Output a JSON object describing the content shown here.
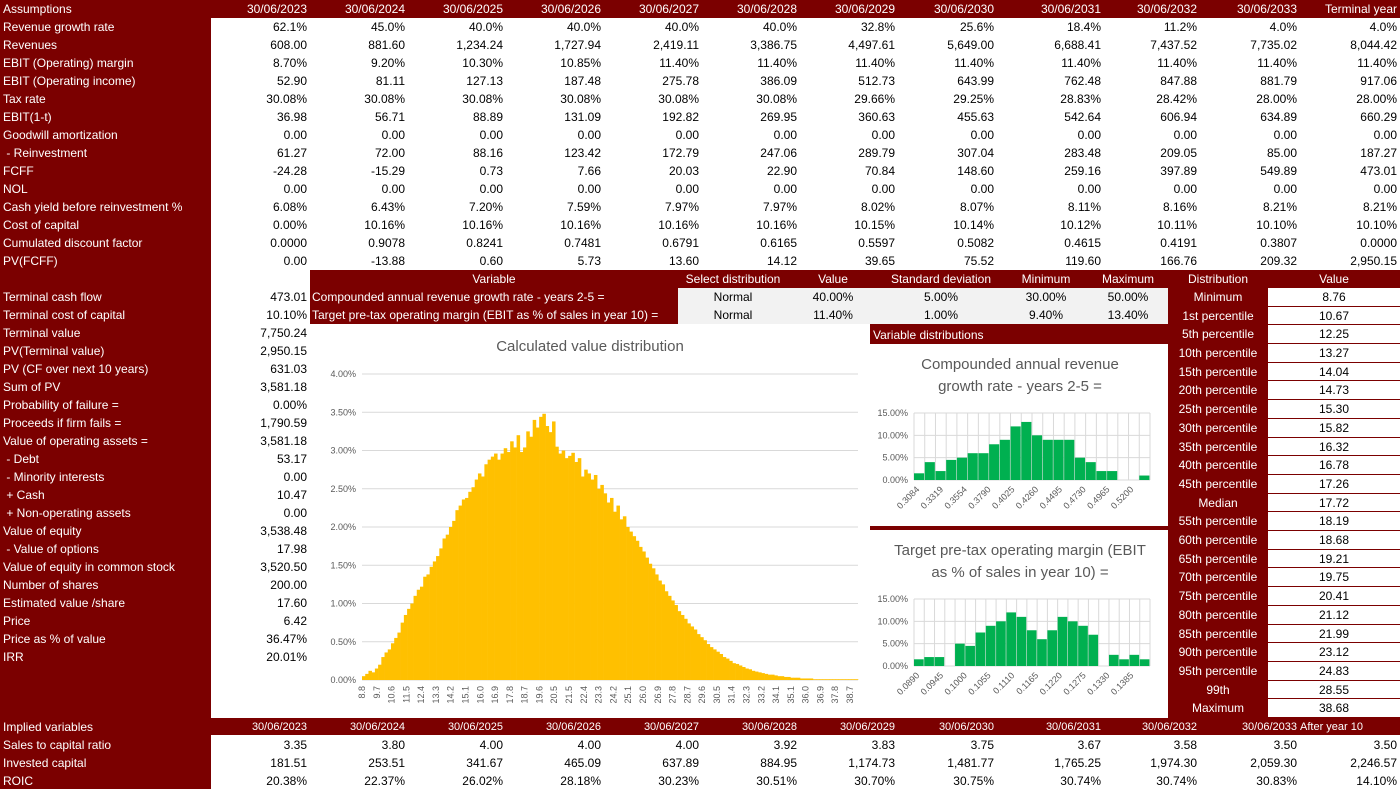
{
  "colors": {
    "maroon": "#7b0000",
    "gold": "#ffc000",
    "green": "#00b050",
    "grid_gray": "#d9d9d9"
  },
  "top_table": {
    "header_label": "Assumptions",
    "columns": [
      "30/06/2023",
      "30/06/2024",
      "30/06/2025",
      "30/06/2026",
      "30/06/2027",
      "30/06/2028",
      "30/06/2029",
      "30/06/2030",
      "30/06/2031",
      "30/06/2032",
      "30/06/2033",
      "Terminal year"
    ],
    "rows": [
      {
        "label": "Revenue growth rate",
        "values": [
          "62.1%",
          "45.0%",
          "40.0%",
          "40.0%",
          "40.0%",
          "40.0%",
          "32.8%",
          "25.6%",
          "18.4%",
          "11.2%",
          "4.0%",
          "4.0%"
        ]
      },
      {
        "label": "Revenues",
        "values": [
          "608.00",
          "881.60",
          "1,234.24",
          "1,727.94",
          "2,419.11",
          "3,386.75",
          "4,497.61",
          "5,649.00",
          "6,688.41",
          "7,437.52",
          "7,735.02",
          "8,044.42"
        ]
      },
      {
        "label": "EBIT (Operating) margin",
        "values": [
          "8.70%",
          "9.20%",
          "10.30%",
          "10.85%",
          "11.40%",
          "11.40%",
          "11.40%",
          "11.40%",
          "11.40%",
          "11.40%",
          "11.40%",
          "11.40%"
        ]
      },
      {
        "label": "EBIT (Operating income)",
        "values": [
          "52.90",
          "81.11",
          "127.13",
          "187.48",
          "275.78",
          "386.09",
          "512.73",
          "643.99",
          "762.48",
          "847.88",
          "881.79",
          "917.06"
        ]
      },
      {
        "label": "Tax rate",
        "values": [
          "30.08%",
          "30.08%",
          "30.08%",
          "30.08%",
          "30.08%",
          "30.08%",
          "29.66%",
          "29.25%",
          "28.83%",
          "28.42%",
          "28.00%",
          "28.00%"
        ]
      },
      {
        "label": "EBIT(1-t)",
        "values": [
          "36.98",
          "56.71",
          "88.89",
          "131.09",
          "192.82",
          "269.95",
          "360.63",
          "455.63",
          "542.64",
          "606.94",
          "634.89",
          "660.29"
        ]
      },
      {
        "label": "Goodwill amortization",
        "values": [
          "0.00",
          "0.00",
          "0.00",
          "0.00",
          "0.00",
          "0.00",
          "0.00",
          "0.00",
          "0.00",
          "0.00",
          "0.00",
          "0.00"
        ]
      },
      {
        "label": " - Reinvestment",
        "values": [
          "61.27",
          "72.00",
          "88.16",
          "123.42",
          "172.79",
          "247.06",
          "289.79",
          "307.04",
          "283.48",
          "209.05",
          "85.00",
          "187.27"
        ]
      },
      {
        "label": "FCFF",
        "values": [
          "-24.28",
          "-15.29",
          "0.73",
          "7.66",
          "20.03",
          "22.90",
          "70.84",
          "148.60",
          "259.16",
          "397.89",
          "549.89",
          "473.01"
        ]
      },
      {
        "label": "NOL",
        "values": [
          "0.00",
          "0.00",
          "0.00",
          "0.00",
          "0.00",
          "0.00",
          "0.00",
          "0.00",
          "0.00",
          "0.00",
          "0.00",
          "0.00"
        ]
      },
      {
        "label": "Cash yield before reinvestment %",
        "values": [
          "6.08%",
          "6.43%",
          "7.20%",
          "7.59%",
          "7.97%",
          "7.97%",
          "8.02%",
          "8.07%",
          "8.11%",
          "8.16%",
          "8.21%",
          "8.21%"
        ]
      },
      {
        "label": "Cost of capital",
        "values": [
          "0.00%",
          "10.16%",
          "10.16%",
          "10.16%",
          "10.16%",
          "10.16%",
          "10.15%",
          "10.14%",
          "10.12%",
          "10.11%",
          "10.10%",
          "10.10%"
        ]
      },
      {
        "label": "Cumulated discount factor",
        "values": [
          "0.0000",
          "0.9078",
          "0.8241",
          "0.7481",
          "0.6791",
          "0.6165",
          "0.5597",
          "0.5082",
          "0.4615",
          "0.4191",
          "0.3807",
          "0.0000"
        ]
      },
      {
        "label": "PV(FCFF)",
        "values": [
          "0.00",
          "-13.88",
          "0.60",
          "5.73",
          "13.60",
          "14.12",
          "39.65",
          "75.52",
          "119.60",
          "166.76",
          "209.32",
          "2,950.15"
        ]
      }
    ]
  },
  "valuation": [
    {
      "label": "Terminal cash flow",
      "value": "473.01"
    },
    {
      "label": "Terminal cost of capital",
      "value": "10.10%"
    },
    {
      "label": "Terminal value",
      "value": "7,750.24"
    },
    {
      "label": "PV(Terminal value)",
      "value": "2,950.15"
    },
    {
      "label": "PV (CF over next 10 years)",
      "value": "631.03"
    },
    {
      "label": "Sum of PV",
      "value": "3,581.18"
    },
    {
      "label": "Probability of failure =",
      "value": "0.00%"
    },
    {
      "label": "Proceeds if firm fails =",
      "value": "1,790.59"
    },
    {
      "label": "Value of operating assets =",
      "value": "3,581.18"
    },
    {
      "label": " - Debt",
      "value": "53.17"
    },
    {
      "label": " - Minority interests",
      "value": "0.00"
    },
    {
      "label": " + Cash",
      "value": "10.47"
    },
    {
      "label": " + Non-operating assets",
      "value": "0.00"
    },
    {
      "label": "Value of equity",
      "value": "3,538.48"
    },
    {
      "label": " - Value of options",
      "value": "17.98"
    },
    {
      "label": "Value of equity in common stock",
      "value": "3,520.50"
    },
    {
      "label": "Number of shares",
      "value": "200.00"
    },
    {
      "label": "Estimated value /share",
      "value": "17.60"
    },
    {
      "label": "Price",
      "value": "6.42"
    },
    {
      "label": "Price as % of value",
      "value": "36.47%"
    },
    {
      "label": "IRR",
      "value": "20.01%"
    }
  ],
  "variables_table": {
    "headers": [
      "Variable",
      "Select distribution",
      "Value",
      "Standard deviation",
      "Minimum",
      "Maximum"
    ],
    "rows": [
      {
        "variable": "Compounded annual revenue growth rate - years 2-5 =",
        "distribution": "Normal",
        "value": "40.00%",
        "std": "5.00%",
        "min": "30.00%",
        "max": "50.00%"
      },
      {
        "variable": "Target pre-tax operating margin (EBIT as % of sales in year 10) =",
        "distribution": "Normal",
        "value": "11.40%",
        "std": "1.00%",
        "min": "9.40%",
        "max": "13.40%"
      }
    ]
  },
  "variable_distributions_label": "Variable distributions",
  "distribution_table": {
    "headers": [
      "Distribution",
      "Value"
    ],
    "rows": [
      {
        "label": "Minimum",
        "value": "8.76"
      },
      {
        "label": "1st percentile",
        "value": "10.67"
      },
      {
        "label": "5th percentile",
        "value": "12.25"
      },
      {
        "label": "10th percentile",
        "value": "13.27"
      },
      {
        "label": "15th percentile",
        "value": "14.04"
      },
      {
        "label": "20th percentile",
        "value": "14.73"
      },
      {
        "label": "25th percentile",
        "value": "15.30"
      },
      {
        "label": "30th percentile",
        "value": "15.82"
      },
      {
        "label": "35th percentile",
        "value": "16.32"
      },
      {
        "label": "40th percentile",
        "value": "16.78"
      },
      {
        "label": "45th percentile",
        "value": "17.26"
      },
      {
        "label": "Median",
        "value": "17.72"
      },
      {
        "label": "55th percentile",
        "value": "18.19"
      },
      {
        "label": "60th percentile",
        "value": "18.68"
      },
      {
        "label": "65th percentile",
        "value": "19.21"
      },
      {
        "label": "70th percentile",
        "value": "19.75"
      },
      {
        "label": "75th percentile",
        "value": "20.41"
      },
      {
        "label": "80th percentile",
        "value": "21.12"
      },
      {
        "label": "85th percentile",
        "value": "21.99"
      },
      {
        "label": "90th percentile",
        "value": "23.12"
      },
      {
        "label": "95th percentile",
        "value": "24.83"
      },
      {
        "label": "99th",
        "value": "28.55"
      },
      {
        "label": "Maximum",
        "value": "38.68"
      }
    ]
  },
  "bottom_table": {
    "header_label": "Implied variables",
    "columns": [
      "30/06/2023",
      "30/06/2024",
      "30/06/2025",
      "30/06/2026",
      "30/06/2027",
      "30/06/2028",
      "30/06/2029",
      "30/06/2030",
      "30/06/2031",
      "30/06/2032",
      "30/06/2033",
      "After year 10"
    ],
    "rows": [
      {
        "label": "Sales to capital ratio",
        "values": [
          "3.35",
          "3.80",
          "4.00",
          "4.00",
          "4.00",
          "3.92",
          "3.83",
          "3.75",
          "3.67",
          "3.58",
          "3.50",
          "3.50"
        ]
      },
      {
        "label": "Invested capital",
        "values": [
          "181.51",
          "253.51",
          "341.67",
          "465.09",
          "637.89",
          "884.95",
          "1,174.73",
          "1,481.77",
          "1,765.25",
          "1,974.30",
          "2,059.30",
          "2,246.57"
        ]
      },
      {
        "label": "ROIC",
        "values": [
          "20.38%",
          "22.37%",
          "26.02%",
          "28.18%",
          "30.23%",
          "30.51%",
          "30.70%",
          "30.75%",
          "30.74%",
          "30.74%",
          "30.83%",
          "14.10%"
        ]
      }
    ]
  },
  "chart_data": [
    {
      "type": "bar",
      "title": "Calculated value distribution",
      "x_tick_labels": [
        "8.8",
        "9.7",
        "10.6",
        "11.5",
        "12.4",
        "13.3",
        "14.2",
        "15.1",
        "16.0",
        "16.9",
        "17.8",
        "18.7",
        "19.6",
        "20.5",
        "21.5",
        "22.4",
        "23.3",
        "24.2",
        "25.1",
        "26.0",
        "26.9",
        "27.8",
        "28.7",
        "29.6",
        "30.5",
        "31.4",
        "32.3",
        "33.2",
        "34.1",
        "35.1",
        "36.0",
        "36.9",
        "37.8",
        "38.7"
      ],
      "y_tick_labels": [
        "0.00%",
        "0.50%",
        "1.00%",
        "1.50%",
        "2.00%",
        "2.50%",
        "3.00%",
        "3.50%",
        "4.00%"
      ],
      "ylim": [
        0,
        0.04
      ],
      "values": [
        0.0005,
        0.0008,
        0.0012,
        0.001,
        0.0015,
        0.002,
        0.003,
        0.0036,
        0.004,
        0.0048,
        0.0055,
        0.0062,
        0.0075,
        0.0085,
        0.0093,
        0.01,
        0.011,
        0.0118,
        0.0122,
        0.0135,
        0.0138,
        0.0148,
        0.0155,
        0.0162,
        0.0172,
        0.0185,
        0.019,
        0.02,
        0.0208,
        0.0222,
        0.0228,
        0.0236,
        0.0238,
        0.0246,
        0.0252,
        0.0262,
        0.027,
        0.0266,
        0.0282,
        0.0288,
        0.0292,
        0.0296,
        0.0288,
        0.0296,
        0.0303,
        0.0298,
        0.0312,
        0.0304,
        0.032,
        0.0298,
        0.0304,
        0.0325,
        0.0318,
        0.034,
        0.033,
        0.0344,
        0.0348,
        0.0332,
        0.0324,
        0.0338,
        0.0305,
        0.0296,
        0.03,
        0.029,
        0.0293,
        0.0297,
        0.0285,
        0.029,
        0.0266,
        0.0275,
        0.027,
        0.0262,
        0.0268,
        0.025,
        0.0255,
        0.0244,
        0.0232,
        0.0238,
        0.022,
        0.0228,
        0.021,
        0.0214,
        0.02,
        0.0194,
        0.0188,
        0.0182,
        0.0174,
        0.0168,
        0.016,
        0.0152,
        0.0146,
        0.0138,
        0.013,
        0.0125,
        0.0116,
        0.011,
        0.0104,
        0.0098,
        0.009,
        0.0085,
        0.008,
        0.0074,
        0.007,
        0.0066,
        0.006,
        0.0056,
        0.0052,
        0.0047,
        0.0043,
        0.004,
        0.0037,
        0.0034,
        0.003,
        0.0028,
        0.0025,
        0.0022,
        0.0021,
        0.0019,
        0.0017,
        0.0015,
        0.0014,
        0.0012,
        0.0011,
        0.001,
        0.0009,
        0.0008,
        0.0007,
        0.0007,
        0.0006,
        0.0005,
        0.0005,
        0.0004,
        0.0004,
        0.0003,
        0.0003,
        0.0003,
        0.0002,
        0.0002,
        0.0002,
        0.0002,
        0.0001,
        0.0001,
        0.0001,
        0.0001,
        0.0001,
        0.0001,
        0.0001,
        0.0001,
        0.0001,
        0.0001,
        0.0001,
        0.0001,
        0.0001,
        0.0001
      ],
      "color": "#ffc000"
    },
    {
      "type": "bar",
      "title": "Compounded annual revenue growth rate - years 2-5 =",
      "x_tick_labels": [
        "0.3084",
        "0.3319",
        "0.3554",
        "0.3790",
        "0.4025",
        "0.4260",
        "0.4495",
        "0.4730",
        "0.4965",
        "0.5200"
      ],
      "y_tick_labels": [
        "0.00%",
        "5.00%",
        "10.00%",
        "15.00%"
      ],
      "ylim": [
        0,
        0.15
      ],
      "values": [
        0.015,
        0.04,
        0.02,
        0.045,
        0.05,
        0.06,
        0.06,
        0.08,
        0.09,
        0.12,
        0.13,
        0.1,
        0.09,
        0.09,
        0.09,
        0.05,
        0.04,
        0.02,
        0.02,
        0.0,
        0.0,
        0.01
      ],
      "color": "#00b050"
    },
    {
      "type": "bar",
      "title": "Target pre-tax operating margin (EBIT as % of sales in year 10) =",
      "x_tick_labels": [
        "0.0890",
        "0.0945",
        "0.1000",
        "0.1055",
        "0.1110",
        "0.1165",
        "0.1220",
        "0.1275",
        "0.1330",
        "0.1385"
      ],
      "y_tick_labels": [
        "0.00%",
        "5.00%",
        "10.00%",
        "15.00%"
      ],
      "ylim": [
        0,
        0.15
      ],
      "values": [
        0.015,
        0.02,
        0.02,
        0.0,
        0.05,
        0.045,
        0.075,
        0.09,
        0.1,
        0.12,
        0.11,
        0.08,
        0.06,
        0.08,
        0.11,
        0.1,
        0.09,
        0.07,
        0.0,
        0.025,
        0.015,
        0.025,
        0.015
      ],
      "color": "#00b050"
    }
  ]
}
